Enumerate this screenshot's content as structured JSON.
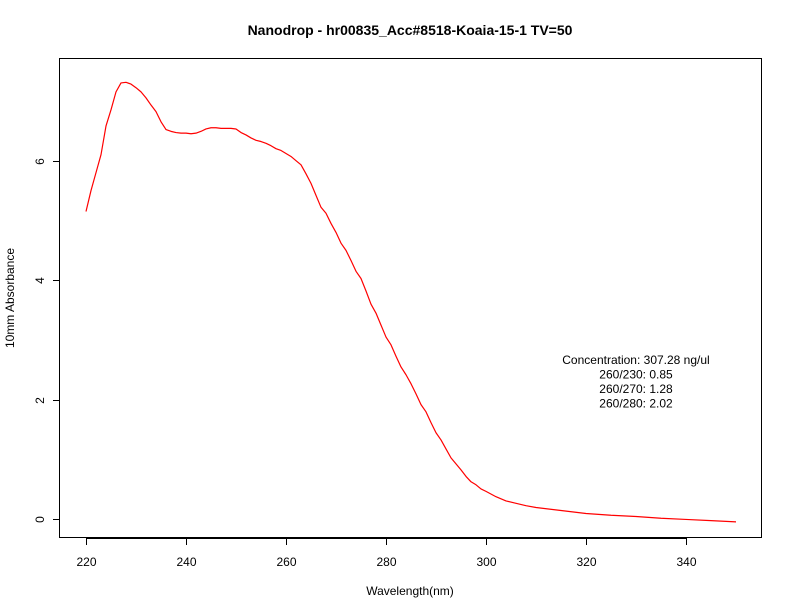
{
  "chart_data": {
    "type": "line",
    "title": "Nanodrop - hr00835_Acc#8518-Koaia-15-1 TV=50",
    "xlabel": "Wavelength(nm)",
    "ylabel": "10mm Absorbance",
    "xlim": [
      214.8,
      355.2
    ],
    "ylim": [
      -0.31,
      7.7
    ],
    "x_ticks": [
      220,
      240,
      260,
      280,
      300,
      320,
      340
    ],
    "y_ticks": [
      0,
      2,
      4,
      6
    ],
    "grid": false,
    "series": [
      {
        "color": "#ff0000",
        "x": [
          220,
          221,
          222,
          223,
          224,
          225,
          226,
          227,
          228,
          229,
          230,
          231,
          232,
          233,
          234,
          235,
          236,
          237,
          238,
          239,
          240,
          241,
          242,
          243,
          244,
          245,
          246,
          247,
          248,
          249,
          250,
          251,
          252,
          253,
          254,
          255,
          256,
          257,
          258,
          259,
          260,
          261,
          262,
          263,
          264,
          265,
          266,
          267,
          268,
          269,
          270,
          271,
          272,
          273,
          274,
          275,
          276,
          277,
          278,
          279,
          280,
          281,
          282,
          283,
          284,
          285,
          286,
          287,
          288,
          289,
          290,
          291,
          292,
          293,
          294,
          295,
          296,
          297,
          298,
          299,
          300,
          302,
          304,
          306,
          308,
          310,
          315,
          320,
          325,
          330,
          335,
          340,
          345,
          350
        ],
        "y": [
          5.15,
          5.5,
          5.8,
          6.1,
          6.58,
          6.85,
          7.15,
          7.3,
          7.31,
          7.28,
          7.22,
          7.15,
          7.05,
          6.93,
          6.82,
          6.65,
          6.52,
          6.49,
          6.47,
          6.46,
          6.46,
          6.45,
          6.46,
          6.49,
          6.53,
          6.55,
          6.55,
          6.54,
          6.54,
          6.54,
          6.53,
          6.47,
          6.43,
          6.38,
          6.34,
          6.32,
          6.29,
          6.25,
          6.2,
          6.17,
          6.12,
          6.07,
          6.0,
          5.93,
          5.78,
          5.62,
          5.42,
          5.22,
          5.12,
          4.95,
          4.8,
          4.62,
          4.5,
          4.33,
          4.15,
          4.03,
          3.82,
          3.6,
          3.45,
          3.25,
          3.05,
          2.92,
          2.73,
          2.55,
          2.42,
          2.27,
          2.1,
          1.92,
          1.8,
          1.62,
          1.45,
          1.33,
          1.18,
          1.03,
          0.93,
          0.83,
          0.72,
          0.63,
          0.58,
          0.51,
          0.47,
          0.38,
          0.31,
          0.27,
          0.23,
          0.2,
          0.15,
          0.1,
          0.07,
          0.05,
          0.02,
          0.0,
          -0.02,
          -0.04
        ]
      }
    ],
    "annotation": {
      "lines": [
        "Concentration: 307.28 ng/ul",
        "260/230: 0.85",
        "260/270: 1.28",
        "260/280: 2.02"
      ],
      "x": 310,
      "y": 2.6
    }
  }
}
